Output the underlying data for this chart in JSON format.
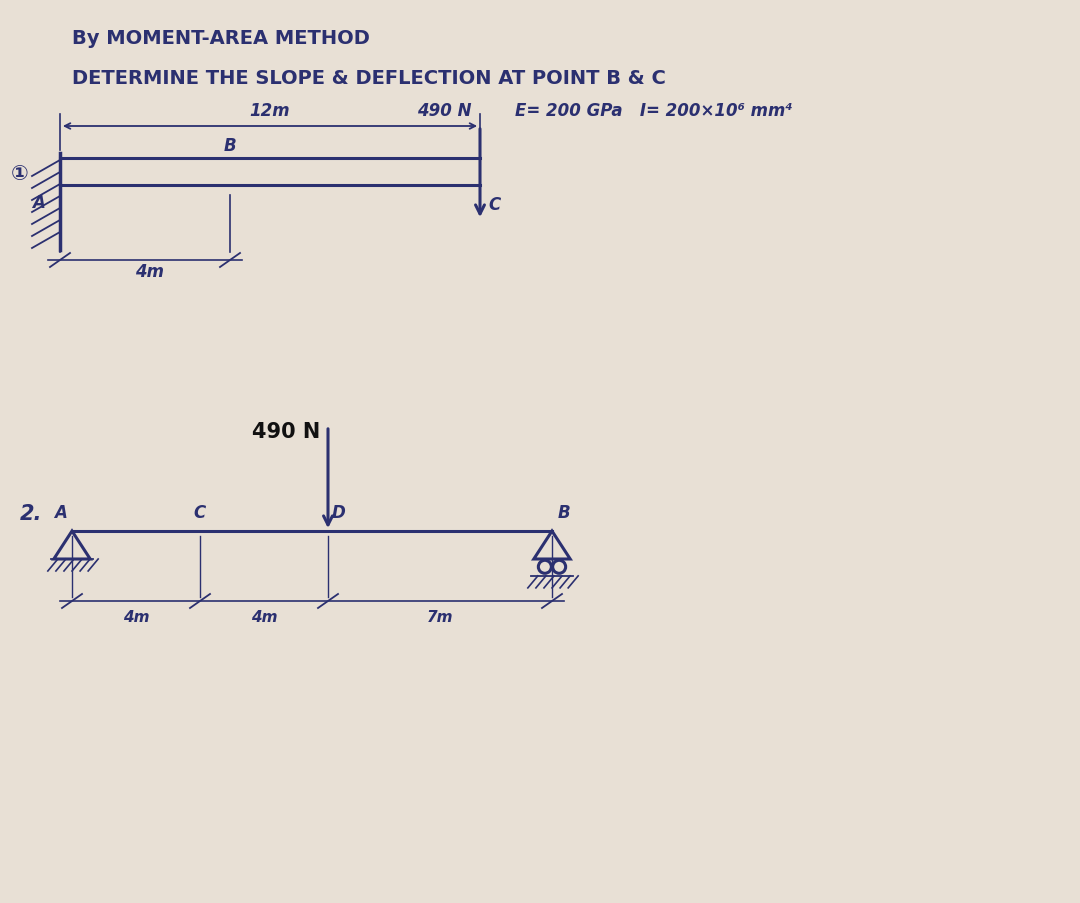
{
  "bg_color": "#e8e0d5",
  "ink_color": "#2b3070",
  "title_line1": "By MOMENT-AREA METHOD",
  "title_line2": "DETERMINE THE SLOPE & DEFLECTION AT POINT B & C",
  "eq_text": "E= 200 GPa   I= 200×10⁶ mm⁴",
  "diag1_label": "①",
  "diag1_load": "490 N",
  "diag1_span": "12m",
  "diag1_cantilever": "4m",
  "diag2_label": "2.",
  "diag2_load": "490 N",
  "diag2_dim1": "4m",
  "diag2_dim2": "4m",
  "diag2_dim3": "7m"
}
